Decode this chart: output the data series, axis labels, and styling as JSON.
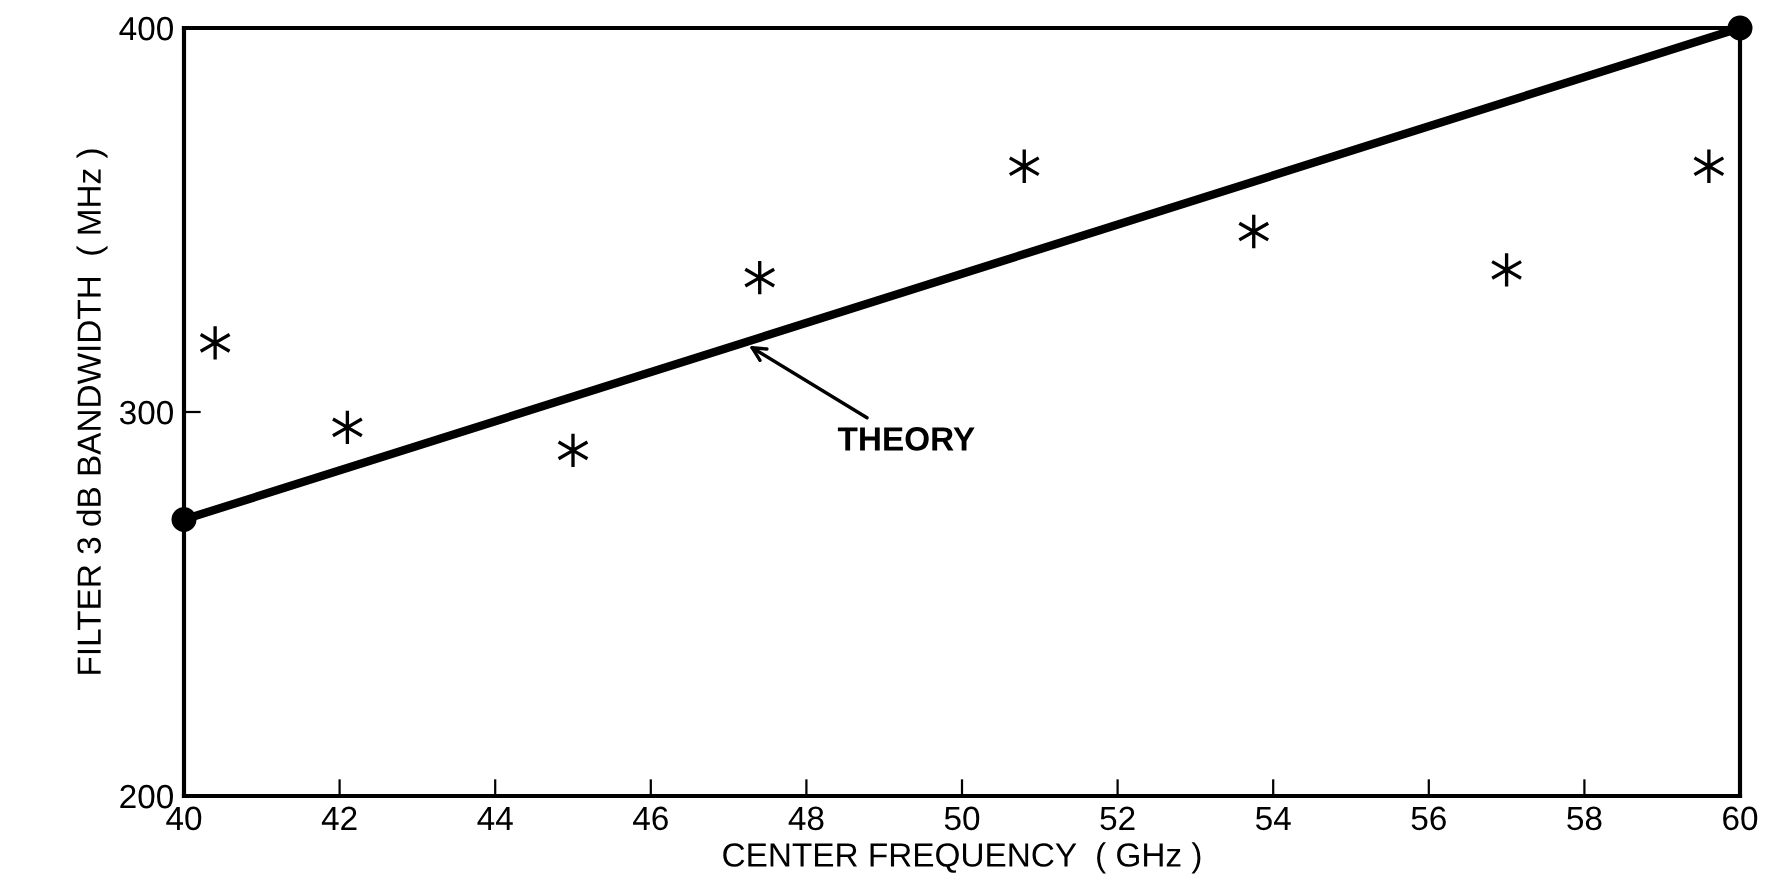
{
  "chart_data": {
    "type": "scatter",
    "xlabel": "CENTER FREQUENCY  ( GHz )",
    "ylabel": "FILTER 3 dB BANDWIDTH  ( MHz )",
    "xlim": [
      40,
      60
    ],
    "ylim": [
      200,
      400
    ],
    "xticks": [
      40,
      42,
      44,
      46,
      48,
      50,
      52,
      54,
      56,
      58,
      60
    ],
    "yticks": [
      200,
      300,
      400
    ],
    "grid": false,
    "legend": false,
    "series": [
      {
        "marker": "cross",
        "color": "#000000",
        "x": [
          40.4,
          42.1,
          45.0,
          47.4,
          50.8,
          53.75,
          57.0,
          59.6
        ],
        "values": [
          318,
          296,
          290,
          335,
          364,
          347,
          337,
          364
        ]
      },
      {
        "type": "line",
        "marker": "circle",
        "line_style": "solid",
        "color": "#000000",
        "x": [
          40,
          60
        ],
        "values": [
          272,
          400
        ]
      }
    ],
    "annotations": [
      {
        "text": "THEORY",
        "x": 47.2,
        "y": 318
      }
    ]
  }
}
